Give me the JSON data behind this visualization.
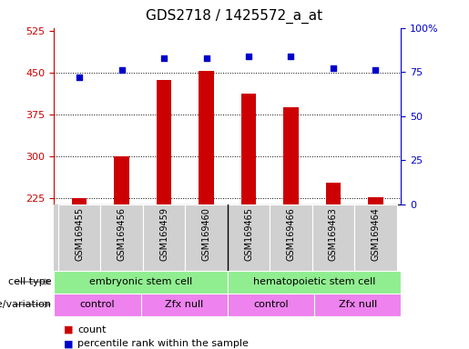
{
  "title": "GDS2718 / 1425572_a_at",
  "samples": [
    "GSM169455",
    "GSM169456",
    "GSM169459",
    "GSM169460",
    "GSM169465",
    "GSM169466",
    "GSM169463",
    "GSM169464"
  ],
  "counts": [
    226,
    301,
    437,
    453,
    412,
    388,
    253,
    228
  ],
  "percentile_ranks": [
    72,
    76,
    83,
    83,
    84,
    84,
    77,
    76
  ],
  "ylim_left": [
    215,
    530
  ],
  "yticks_left": [
    225,
    300,
    375,
    450,
    525
  ],
  "ylim_right": [
    0,
    100
  ],
  "yticks_right": [
    0,
    25,
    50,
    75,
    100
  ],
  "bar_color": "#cc0000",
  "dot_color": "#0000cc",
  "cell_type_groups": [
    {
      "label": "embryonic stem cell",
      "start": 0,
      "end": 3,
      "color": "#90ee90"
    },
    {
      "label": "hematopoietic stem cell",
      "start": 4,
      "end": 7,
      "color": "#90ee90"
    }
  ],
  "genotype_groups": [
    {
      "label": "control",
      "start": 0,
      "end": 1,
      "color": "#ee82ee"
    },
    {
      "label": "Zfx null",
      "start": 2,
      "end": 3,
      "color": "#ee82ee"
    },
    {
      "label": "control",
      "start": 4,
      "end": 5,
      "color": "#ee82ee"
    },
    {
      "label": "Zfx null",
      "start": 6,
      "end": 7,
      "color": "#ee82ee"
    }
  ],
  "legend_count_color": "#cc0000",
  "legend_dot_color": "#0000cc",
  "bg_color": "#ffffff",
  "axis_color_left": "#cc0000",
  "axis_color_right": "#0000cc",
  "title_fontsize": 11,
  "tick_fontsize": 8,
  "label_fontsize": 8,
  "sample_label_fontsize": 7,
  "bar_width": 0.35
}
